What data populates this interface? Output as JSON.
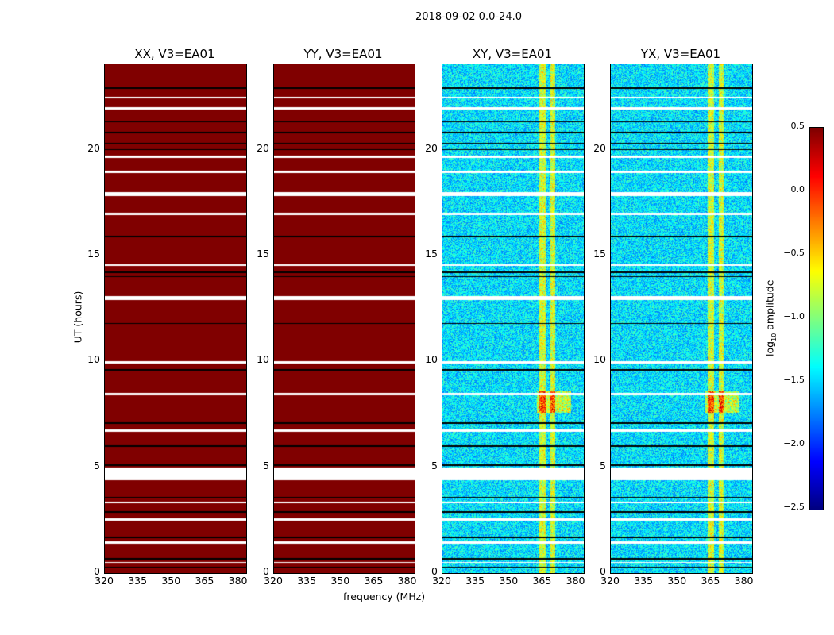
{
  "chart_data": {
    "type": "heatmap",
    "suptitle": "2018-09-02 0.0-24.0",
    "xlabel": "frequency (MHz)",
    "ylabel": "UT (hours)",
    "xlim": [
      320,
      383
    ],
    "ylim": [
      0,
      24
    ],
    "xticks": [
      "320",
      "335",
      "350",
      "365",
      "380"
    ],
    "yticks": [
      "0",
      "5",
      "10",
      "15",
      "20"
    ],
    "panels": [
      {
        "title": "XX, V3=EA01",
        "kind": "saturated"
      },
      {
        "title": "YY, V3=EA01",
        "kind": "saturated"
      },
      {
        "title": "XY, V3=EA01",
        "kind": "noise"
      },
      {
        "title": "YX, V3=EA01",
        "kind": "noise"
      }
    ],
    "colorbar": {
      "label_prefix": "log",
      "label_sub": "10",
      "label_suffix": " amplitude",
      "range": [
        -2.5,
        0.5
      ],
      "ticks": [
        "0.5",
        "0.0",
        "−0.5",
        "−1.0",
        "−1.5",
        "−2.0",
        "−2.5"
      ],
      "colormap": "jet"
    },
    "flagged_hours": [
      [
        4.4,
        5.0
      ],
      [
        12.9,
        13.1
      ],
      [
        2.5,
        2.6
      ],
      [
        17.8,
        18.0
      ],
      [
        18.9,
        19.0
      ],
      [
        16.9,
        17.0
      ],
      [
        14.5,
        14.6
      ],
      [
        8.4,
        8.5
      ],
      [
        22.4,
        22.5
      ],
      [
        21.9,
        22.0
      ],
      [
        6.7,
        6.8
      ],
      [
        1.4,
        1.5
      ],
      [
        3.3,
        3.4
      ],
      [
        9.9,
        10.0
      ],
      [
        19.6,
        19.7
      ],
      [
        0.5,
        0.55
      ]
    ],
    "black_lines_hours": [
      0.3,
      0.7,
      1.7,
      2.9,
      3.6,
      5.1,
      6.0,
      7.1,
      9.6,
      11.8,
      14.0,
      14.2,
      15.9,
      20.0,
      20.3,
      20.8,
      21.3,
      22.9
    ],
    "bright_bands_mhz": [
      [
        363,
        366
      ],
      [
        368,
        370
      ]
    ],
    "hot_region": {
      "hours": [
        7.6,
        8.6
      ],
      "mhz": [
        362,
        377
      ]
    }
  }
}
